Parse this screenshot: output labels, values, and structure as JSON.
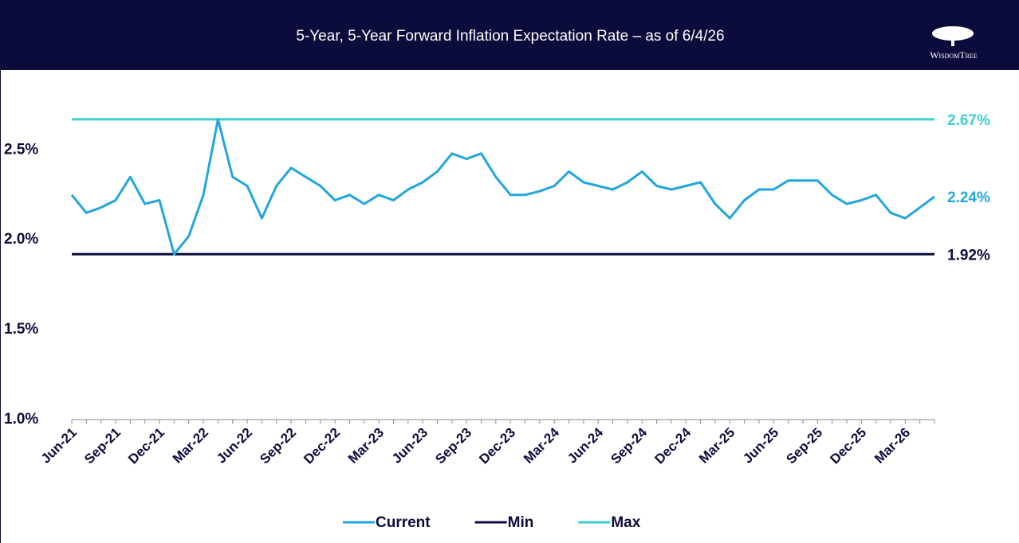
{
  "logo_text": "WisdomTree",
  "chart_data": {
    "type": "line",
    "title": "5-Year, 5-Year Forward Inflation Expectation Rate – as of 6/4/26",
    "categories": [
      "Jun-21",
      null,
      null,
      "Sep-21",
      null,
      null,
      "Dec-21",
      null,
      null,
      "Mar-22",
      null,
      null,
      "Jun-22",
      null,
      null,
      "Sep-22",
      null,
      null,
      "Dec-22",
      null,
      null,
      "Mar-23",
      null,
      null,
      "Jun-23",
      null,
      null,
      "Sep-23",
      null,
      null,
      "Dec-23",
      null,
      null,
      "Mar-24",
      null,
      null,
      "Jun-24",
      null,
      null,
      "Sep-24",
      null,
      null,
      "Dec-24",
      null,
      null,
      "Mar-25",
      null,
      null,
      "Jun-25",
      null,
      null,
      "Sep-25",
      null,
      null,
      "Dec-25",
      null,
      null,
      "Mar-26",
      null,
      null
    ],
    "series": [
      {
        "name": "Current",
        "color": "#22a6dd",
        "values": [
          2.25,
          2.15,
          2.18,
          2.22,
          2.35,
          2.2,
          2.22,
          1.92,
          2.02,
          2.25,
          2.67,
          2.35,
          2.3,
          2.12,
          2.3,
          2.4,
          2.35,
          2.3,
          2.22,
          2.25,
          2.2,
          2.25,
          2.22,
          2.28,
          2.32,
          2.38,
          2.48,
          2.45,
          2.48,
          2.35,
          2.25,
          2.25,
          2.27,
          2.3,
          2.38,
          2.32,
          2.3,
          2.28,
          2.32,
          2.38,
          2.3,
          2.28,
          2.3,
          2.32,
          2.2,
          2.12,
          2.22,
          2.28,
          2.28,
          2.33,
          2.33,
          2.33,
          2.25,
          2.2,
          2.22,
          2.25,
          2.15,
          2.12,
          2.18,
          2.24
        ],
        "end_label": "2.24%"
      }
    ],
    "reference_lines": [
      {
        "name": "Min",
        "color": "#0c0c3c",
        "value": 1.92,
        "label": "1.92%"
      },
      {
        "name": "Max",
        "color": "#3dcfcf",
        "value": 2.67,
        "label": "2.67%"
      }
    ],
    "ylim": [
      1.0,
      2.9
    ],
    "yticks": [
      {
        "value": 1.0,
        "label": "1.0%"
      },
      {
        "value": 1.5,
        "label": "1.5%"
      },
      {
        "value": 2.0,
        "label": "2.0%"
      },
      {
        "value": 2.5,
        "label": "2.5%"
      }
    ],
    "grid": false
  }
}
